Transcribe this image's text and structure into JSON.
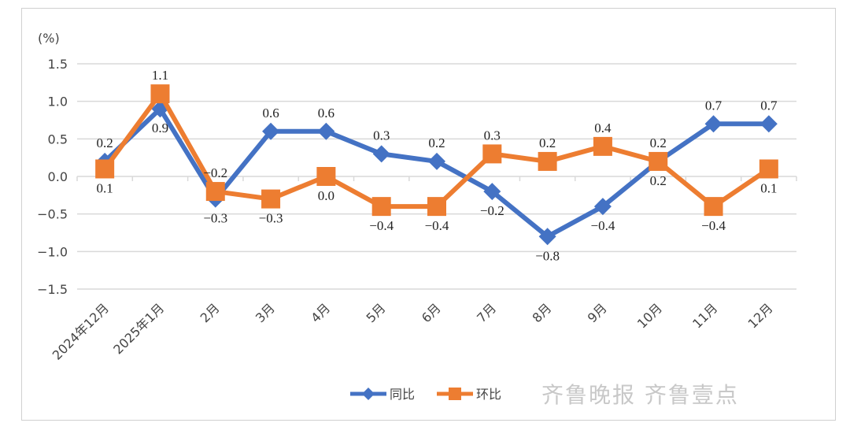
{
  "chart_data": {
    "type": "line",
    "unit_label": "(%)",
    "categories": [
      "2024年12月",
      "2025年1月",
      "2月",
      "3月",
      "4月",
      "5月",
      "6月",
      "7月",
      "8月",
      "9月",
      "10月",
      "11月",
      "12月"
    ],
    "ylim": [
      -1.5,
      1.5
    ],
    "yticks": [
      "1.5",
      "1.0",
      "0.5",
      "0.0",
      "-0.5",
      "-1.0",
      "-1.5"
    ],
    "grid": true,
    "legend_position": "bottom",
    "series": [
      {
        "name": "同比",
        "color": "#4472C4",
        "marker": "diamond",
        "values": [
          0.2,
          0.9,
          -0.3,
          0.6,
          0.6,
          0.3,
          0.2,
          -0.2,
          -0.8,
          -0.4,
          0.2,
          0.7,
          0.7
        ]
      },
      {
        "name": "环比",
        "color": "#ED7D31",
        "marker": "square",
        "values": [
          0.1,
          1.1,
          -0.2,
          -0.3,
          0.0,
          -0.4,
          -0.4,
          0.3,
          0.2,
          0.4,
          0.2,
          -0.4,
          0.1
        ]
      }
    ]
  },
  "watermark": "齐鲁晚报 齐鲁壹点"
}
